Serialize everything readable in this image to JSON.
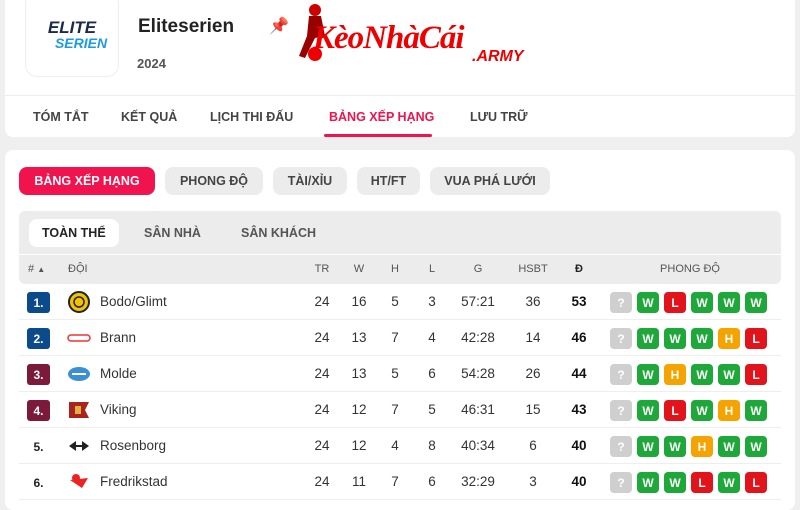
{
  "league": {
    "title": "Eliteserien",
    "season": "2024",
    "logo_text_1": "ELITE",
    "logo_text_2": "SERIEN"
  },
  "watermark": {
    "text": "KèoNhàCái",
    "sub": ".ARMY"
  },
  "nav": [
    {
      "label": "TÓM TẮT"
    },
    {
      "label": "KẾT QUẢ"
    },
    {
      "label": "LỊCH THI ĐẤU"
    },
    {
      "label": "BẢNG XẾP HẠNG",
      "active": true
    },
    {
      "label": "LƯU TRỮ"
    }
  ],
  "pills": [
    {
      "label": "BẢNG XẾP HẠNG",
      "active": true
    },
    {
      "label": "PHONG ĐỘ"
    },
    {
      "label": "TÀI/XỈU"
    },
    {
      "label": "HT/FT"
    },
    {
      "label": "VUA PHÁ LƯỚI"
    }
  ],
  "subtabs": [
    {
      "label": "TOÀN THỂ",
      "active": true
    },
    {
      "label": "SÂN NHÀ"
    },
    {
      "label": "SÂN KHÁCH"
    }
  ],
  "headers": {
    "rank": "#",
    "team": "ĐỘI",
    "tr": "TR",
    "w": "W",
    "h": "H",
    "l": "L",
    "g": "G",
    "hsbt": "HSBT",
    "pts": "Đ",
    "form": "PHONG ĐỘ"
  },
  "colors": {
    "accent": "#f0134d",
    "rank_blue": "#0b4a8b",
    "rank_maroon": "#7b1a3a",
    "win": "#1ea83a",
    "loss": "#e0141a",
    "draw": "#f5a300",
    "unknown": "#cfcfcf"
  },
  "rows": [
    {
      "rank": "1.",
      "team": "Bodo/Glimt",
      "tr": "24",
      "w": "16",
      "h": "5",
      "l": "3",
      "g": "57:21",
      "hsbt": "36",
      "pts": "53",
      "zone": "blue",
      "form": [
        "?",
        "W",
        "L",
        "W",
        "W",
        "W"
      ]
    },
    {
      "rank": "2.",
      "team": "Brann",
      "tr": "24",
      "w": "13",
      "h": "7",
      "l": "4",
      "g": "42:28",
      "hsbt": "14",
      "pts": "46",
      "zone": "blue",
      "form": [
        "?",
        "W",
        "W",
        "W",
        "H",
        "L"
      ]
    },
    {
      "rank": "3.",
      "team": "Molde",
      "tr": "24",
      "w": "13",
      "h": "5",
      "l": "6",
      "g": "54:28",
      "hsbt": "26",
      "pts": "44",
      "zone": "maroon",
      "form": [
        "?",
        "W",
        "H",
        "W",
        "W",
        "L"
      ]
    },
    {
      "rank": "4.",
      "team": "Viking",
      "tr": "24",
      "w": "12",
      "h": "7",
      "l": "5",
      "g": "46:31",
      "hsbt": "15",
      "pts": "43",
      "zone": "maroon",
      "form": [
        "?",
        "W",
        "L",
        "W",
        "H",
        "W"
      ]
    },
    {
      "rank": "5.",
      "team": "Rosenborg",
      "tr": "24",
      "w": "12",
      "h": "4",
      "l": "8",
      "g": "40:34",
      "hsbt": "6",
      "pts": "40",
      "zone": "none",
      "form": [
        "?",
        "W",
        "W",
        "H",
        "W",
        "W"
      ]
    },
    {
      "rank": "6.",
      "team": "Fredrikstad",
      "tr": "24",
      "w": "11",
      "h": "7",
      "l": "6",
      "g": "32:29",
      "hsbt": "3",
      "pts": "40",
      "zone": "none",
      "form": [
        "?",
        "W",
        "W",
        "L",
        "W",
        "L"
      ]
    }
  ]
}
